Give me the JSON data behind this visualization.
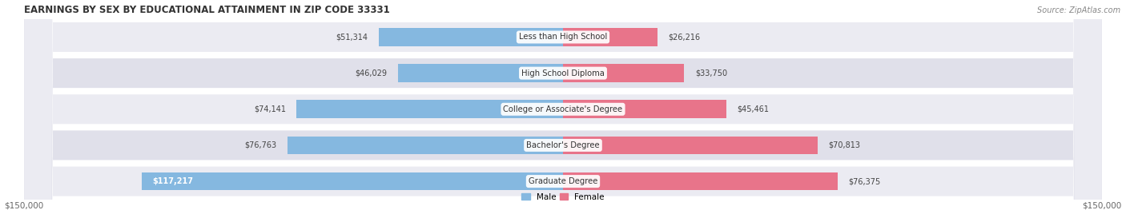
{
  "title": "EARNINGS BY SEX BY EDUCATIONAL ATTAINMENT IN ZIP CODE 33331",
  "source": "Source: ZipAtlas.com",
  "categories": [
    "Less than High School",
    "High School Diploma",
    "College or Associate's Degree",
    "Bachelor's Degree",
    "Graduate Degree"
  ],
  "male_values": [
    51314,
    46029,
    74141,
    76763,
    117217
  ],
  "female_values": [
    26216,
    33750,
    45461,
    70813,
    76375
  ],
  "male_color": "#85b8e0",
  "female_color": "#e8748a",
  "row_bg_light": "#ebebf2",
  "row_bg_dark": "#e0e0ea",
  "axis_max": 150000,
  "legend_male": "Male",
  "legend_female": "Female",
  "figsize": [
    14.06,
    2.68
  ],
  "dpi": 100
}
